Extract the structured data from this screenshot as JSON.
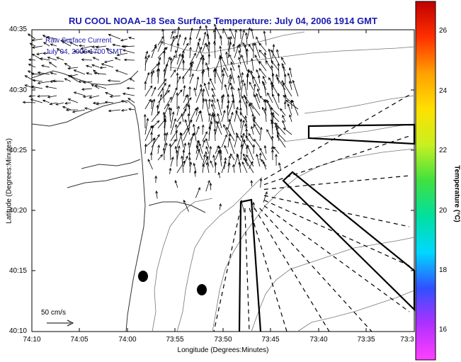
{
  "title": "RU COOL  NOAA–18  Sea Surface Temperature:  July 04, 2006 1914 GMT",
  "xlabel": "Longitude (Degrees:Minutes)",
  "ylabel": "Latitude (Degrees:Minutes)",
  "colorbar_label": "Temperature (°C)",
  "yticks": [
    "40:35",
    "40:30",
    "40:25",
    "40:20",
    "40:15",
    "40:10"
  ],
  "xticks": [
    "74:10",
    "74:05",
    "74:00",
    "73:55",
    "73:50",
    "73:45",
    "73:40",
    "73:35",
    "73:3"
  ],
  "cbticks": [
    "26",
    "24",
    "22",
    "20",
    "18",
    "16"
  ],
  "raw_line1": "Raw Surface Current",
  "raw_line2": "July 04, 2006 1700 GMT",
  "scale_label": "50 cm/s",
  "colorbar": {
    "range": [
      15,
      27.5
    ],
    "colors": [
      "#ff40ff",
      "#b030ff",
      "#3050ff",
      "#00d8ff",
      "#00e0a0",
      "#40e040",
      "#c8f020",
      "#ffe000",
      "#ffa000",
      "#ff3000",
      "#c00000"
    ]
  }
}
